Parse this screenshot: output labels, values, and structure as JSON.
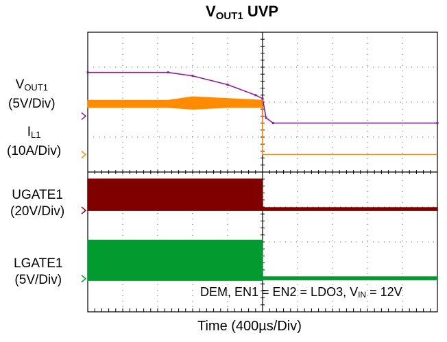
{
  "title": {
    "main": "V",
    "sub": "OUT1",
    "suffix": " UVP"
  },
  "channels": [
    {
      "name_main": "V",
      "name_sub": "OUT1",
      "scale": "(5V/Div)",
      "color": "#8b1a9b"
    },
    {
      "name_main": "I",
      "name_sub": "L1",
      "scale": "(10A/Div)",
      "color": "#ff8c00"
    },
    {
      "name_main": "UGATE1",
      "name_sub": "",
      "scale": "(20V/Div)",
      "color": "#800000"
    },
    {
      "name_main": "LGATE1",
      "name_sub": "",
      "scale": "(5V/Div)",
      "color": "#009a2e"
    }
  ],
  "condition": {
    "part1": "DEM, EN1 = EN2 = LDO3, V",
    "sub": "IN",
    "part2": " = 12V"
  },
  "xlabel": "Time (400µs/Div)",
  "chart_data": {
    "type": "line",
    "title": "VOUT1 UVP",
    "xlabel": "Time (400µs/Div)",
    "x_unit": "div",
    "xlim": [
      0,
      10
    ],
    "ylim": [
      0,
      8
    ],
    "grid": true,
    "trigger_time_div": 5.0,
    "series": [
      {
        "name": "VOUT1",
        "scale": "5V/Div",
        "color": "#8b1a9b",
        "x": [
          0,
          2.3,
          3.0,
          4.0,
          4.8,
          5.0,
          5.1,
          5.3,
          10
        ],
        "y": [
          6.85,
          6.85,
          6.75,
          6.5,
          6.2,
          6.1,
          5.55,
          5.4,
          5.4
        ]
      },
      {
        "name": "IL1",
        "scale": "10A/Div",
        "color": "#ff8c00",
        "band": true,
        "x": [
          0,
          2.3,
          3.0,
          4.0,
          4.99,
          5.0,
          10
        ],
        "y_low": [
          5.85,
          5.85,
          5.8,
          5.85,
          5.85,
          4.5,
          4.5
        ],
        "y_high": [
          6.05,
          6.05,
          6.15,
          6.1,
          6.05,
          4.5,
          4.5
        ]
      },
      {
        "name": "UGATE1",
        "scale": "20V/Div",
        "color": "#800000",
        "band": true,
        "x": [
          0,
          4.99,
          5.0,
          10
        ],
        "y_low": [
          2.9,
          2.9,
          2.9,
          2.9
        ],
        "y_high": [
          3.8,
          3.8,
          2.98,
          2.98
        ]
      },
      {
        "name": "LGATE1",
        "scale": "5V/Div",
        "color": "#009a2e",
        "band": true,
        "x": [
          0,
          4.99,
          5.0,
          10
        ],
        "y_low": [
          0.9,
          0.9,
          0.92,
          0.92
        ],
        "y_high": [
          2.05,
          2.05,
          1.0,
          1.0
        ]
      }
    ]
  }
}
